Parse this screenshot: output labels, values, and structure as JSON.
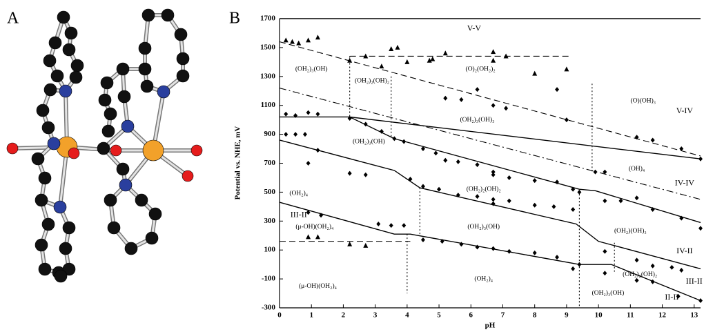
{
  "figure": {
    "panel_a": "A",
    "panel_b": "B"
  },
  "chart_data": {
    "type": "line",
    "x_label": "pH",
    "y_label": "Potential vs. NHE, mV",
    "xlim": [
      0,
      13.2
    ],
    "ylim": [
      -300,
      1700
    ],
    "xticks": [
      0,
      1,
      2,
      3,
      4,
      5,
      6,
      7,
      8,
      9,
      10,
      11,
      12,
      13
    ],
    "yticks": [
      1700,
      1500,
      1300,
      1100,
      900,
      700,
      500,
      300,
      100,
      -100,
      -300
    ],
    "color": "#000000",
    "series": [
      {
        "dash": "solid",
        "x": [
          0,
          2.2,
          13.2
        ],
        "values": [
          1020,
          1020,
          730
        ]
      },
      {
        "dash": "solid",
        "x": [
          2.2,
          3.6,
          9.4,
          9.9,
          13.2
        ],
        "values": [
          1020,
          870,
          520,
          510,
          290
        ]
      },
      {
        "dash": "solid",
        "x": [
          0,
          3.6,
          4.4,
          9.3,
          10,
          13.2
        ],
        "values": [
          860,
          650,
          530,
          280,
          160,
          -30
        ]
      },
      {
        "dash": "solid",
        "x": [
          0,
          3.6,
          4.1,
          9.4,
          10.4,
          13.2
        ],
        "values": [
          430,
          210,
          210,
          0,
          0,
          -250
        ]
      },
      {
        "dash": "dashed",
        "x": [
          0,
          13.2
        ],
        "values": [
          1540,
          750
        ]
      },
      {
        "dash": "dashed",
        "x": [
          2.2,
          9.1
        ],
        "values": [
          1440,
          1440
        ]
      },
      {
        "dash": "dashed",
        "x": [
          0,
          4.1
        ],
        "values": [
          160,
          160
        ]
      },
      {
        "dash": "dashdot",
        "x": [
          0,
          13.2
        ],
        "values": [
          1220,
          450
        ]
      },
      {
        "dash": "dotted",
        "x": [
          2.2,
          2.2
        ],
        "values": [
          1440,
          1020
        ]
      },
      {
        "dash": "dotted",
        "x": [
          3.5,
          3.5
        ],
        "values": [
          1300,
          870
        ]
      },
      {
        "dash": "dotted",
        "x": [
          4.0,
          4.0
        ],
        "values": [
          210,
          -200
        ]
      },
      {
        "dash": "dotted",
        "x": [
          4.4,
          4.4
        ],
        "values": [
          530,
          200
        ]
      },
      {
        "dash": "dotted",
        "x": [
          9.4,
          9.4
        ],
        "values": [
          510,
          -290
        ]
      },
      {
        "dash": "dotted",
        "x": [
          9.8,
          9.8
        ],
        "values": [
          1250,
          640
        ]
      },
      {
        "dash": "dotted",
        "x": [
          10.5,
          10.5
        ],
        "values": [
          150,
          -50
        ]
      },
      {
        "marker": "triangle",
        "x": [
          0.2,
          0.4,
          0.6,
          0.9,
          1.2,
          2.2,
          2.7,
          3.2,
          3.5,
          3.7,
          4.0,
          4.7,
          4.8,
          5.2,
          6.7,
          6.7,
          7.1,
          8.0,
          9.0,
          0.9,
          1.2,
          2.2,
          2.7
        ],
        "values": [
          1550,
          1540,
          1530,
          1550,
          1570,
          1410,
          1440,
          1370,
          1490,
          1500,
          1400,
          1410,
          1420,
          1460,
          1470,
          1410,
          1440,
          1320,
          1350,
          190,
          190,
          140,
          130
        ]
      },
      {
        "marker": "diamond",
        "x": [
          0.2,
          0.5,
          0.9,
          1.2,
          0.2,
          0.5,
          0.8,
          0.9,
          1.2,
          2.2,
          2.7,
          2.2,
          2.7,
          3.2,
          3.6,
          3.9,
          4.5,
          4.9,
          5.2,
          5.7,
          6.2,
          6.7,
          7.1,
          8.7,
          9.0,
          5.2,
          5.6,
          6.2,
          6.7,
          6.7,
          7.2,
          8.0,
          8.7,
          9.2,
          9.9,
          10.2,
          11.2,
          11.7,
          12.6,
          13.2,
          4.1,
          4.5,
          5.0,
          5.6,
          6.2,
          6.7,
          6.7,
          7.2,
          8.0,
          8.6,
          9.2,
          9.4,
          10.2,
          10.7,
          11.2,
          11.7,
          12.6,
          13.2,
          3.1,
          3.5,
          3.9,
          4.5,
          5.1,
          5.7,
          6.2,
          6.7,
          7.2,
          8.0,
          8.7,
          9.2,
          9.4,
          10.2,
          11.2,
          11.7,
          12.3,
          12.6,
          10.2,
          11.2,
          11.7,
          13.2,
          0.9,
          1.3,
          12.5
        ],
        "values": [
          1040,
          1030,
          1050,
          1040,
          900,
          900,
          900,
          700,
          790,
          630,
          620,
          1010,
          970,
          920,
          870,
          850,
          800,
          770,
          1150,
          1140,
          1210,
          1100,
          1080,
          1210,
          1000,
          720,
          710,
          690,
          640,
          620,
          600,
          580,
          570,
          520,
          640,
          640,
          880,
          860,
          800,
          730,
          590,
          540,
          520,
          480,
          470,
          450,
          420,
          440,
          410,
          400,
          380,
          500,
          440,
          440,
          460,
          380,
          320,
          250,
          280,
          270,
          270,
          170,
          160,
          140,
          120,
          110,
          90,
          80,
          50,
          -30,
          0,
          90,
          30,
          -10,
          -20,
          -40,
          -60,
          -110,
          -120,
          -250,
          360,
          340,
          -220
        ]
      }
    ],
    "annotations": [
      {
        "text": "V-V",
        "x": 6.1,
        "y": 1630
      },
      {
        "text": "(OH₂)₃(OH)",
        "x": 1.0,
        "y": 1350
      },
      {
        "text": "(OH₂)₂(OH)₂",
        "x": 2.9,
        "y": 1270
      },
      {
        "text": "(O)₂(OH₂)₂",
        "x": 6.3,
        "y": 1350
      },
      {
        "text": "(O)(OH)₃",
        "x": 11.4,
        "y": 1130
      },
      {
        "text": "V-IV",
        "x": 12.7,
        "y": 1060
      },
      {
        "text": "(OH₂)₃(OH)₃",
        "x": 6.2,
        "y": 1000
      },
      {
        "text": "(OH₂)₃(OH)",
        "x": 2.8,
        "y": 850
      },
      {
        "text": "(OH)₄",
        "x": 11.2,
        "y": 660
      },
      {
        "text": "IV-IV",
        "x": 12.7,
        "y": 560
      },
      {
        "text": "(OH₂)₄",
        "x": 0.6,
        "y": 490
      },
      {
        "text": "(OH₂)₂(OH)₂",
        "x": 6.4,
        "y": 520
      },
      {
        "text": "III-II",
        "x": 0.6,
        "y": 340
      },
      {
        "text": "(μ-OH)(OH₂)₄",
        "x": 1.1,
        "y": 260
      },
      {
        "text": "(OH₂)₃(OH)",
        "x": 6.4,
        "y": 260
      },
      {
        "text": "(OH₂)(OH)₃",
        "x": 11.0,
        "y": 230
      },
      {
        "text": "IV-II",
        "x": 12.7,
        "y": 90
      },
      {
        "text": "(μ-OH)(OH₂)₄",
        "x": 1.2,
        "y": -150
      },
      {
        "text": "(OH₂)₄",
        "x": 6.4,
        "y": -100
      },
      {
        "text": "(OH₂)₂(OH)₂",
        "x": 11.3,
        "y": -70
      },
      {
        "text": "III-II",
        "x": 13.0,
        "y": -120
      },
      {
        "text": "(OH₂)₃(OH)",
        "x": 10.3,
        "y": -200
      },
      {
        "text": "II-II",
        "x": 12.3,
        "y": -230
      }
    ]
  }
}
